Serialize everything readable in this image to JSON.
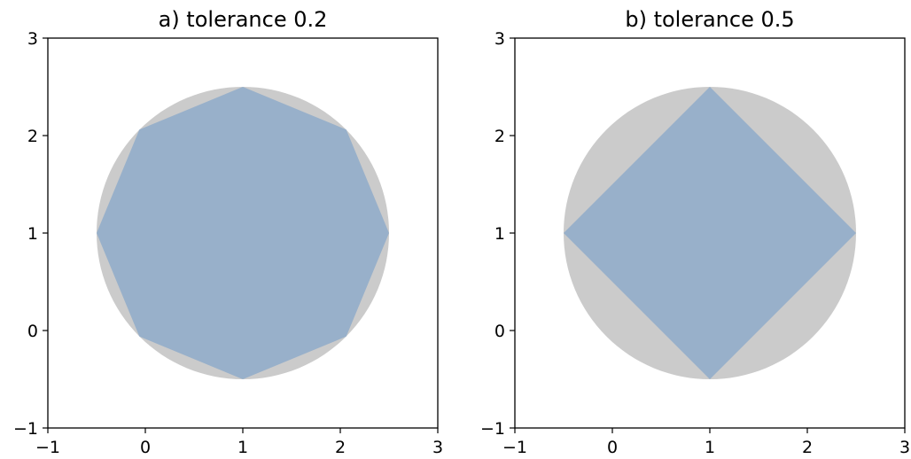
{
  "colors": {
    "circle_fill": "#cbcbcb",
    "polygon_fill": "#98b0ca",
    "axes_edge": "#000000",
    "background": "#ffffff"
  },
  "chart_data": [
    {
      "type": "area",
      "title": "a) tolerance 0.2",
      "xlim": [
        -1,
        3
      ],
      "ylim": [
        -1,
        3
      ],
      "xticks": [
        "−1",
        "0",
        "1",
        "2",
        "3"
      ],
      "yticks": [
        "−1",
        "0",
        "1",
        "2",
        "3"
      ],
      "xtick_values": [
        -1,
        0,
        1,
        2,
        3
      ],
      "ytick_values": [
        -1,
        0,
        1,
        2,
        3
      ],
      "grid": false,
      "circle": {
        "center": [
          1,
          1
        ],
        "radius": 1.5
      },
      "polygon": [
        [
          2.5,
          1.0
        ],
        [
          2.061,
          2.061
        ],
        [
          1.0,
          2.5
        ],
        [
          -0.061,
          2.061
        ],
        [
          -0.5,
          1.0
        ],
        [
          -0.061,
          -0.061
        ],
        [
          1.0,
          -0.5
        ],
        [
          2.061,
          -0.061
        ]
      ]
    },
    {
      "type": "area",
      "title": "b) tolerance 0.5",
      "xlim": [
        -1,
        3
      ],
      "ylim": [
        -1,
        3
      ],
      "xticks": [
        "−1",
        "0",
        "1",
        "2",
        "3"
      ],
      "yticks": [
        "−1",
        "0",
        "1",
        "2",
        "3"
      ],
      "xtick_values": [
        -1,
        0,
        1,
        2,
        3
      ],
      "ytick_values": [
        -1,
        0,
        1,
        2,
        3
      ],
      "grid": false,
      "circle": {
        "center": [
          1,
          1
        ],
        "radius": 1.5
      },
      "polygon": [
        [
          2.5,
          1.0
        ],
        [
          1.0,
          2.5
        ],
        [
          -0.5,
          1.0
        ],
        [
          1.0,
          -0.5
        ]
      ]
    }
  ]
}
